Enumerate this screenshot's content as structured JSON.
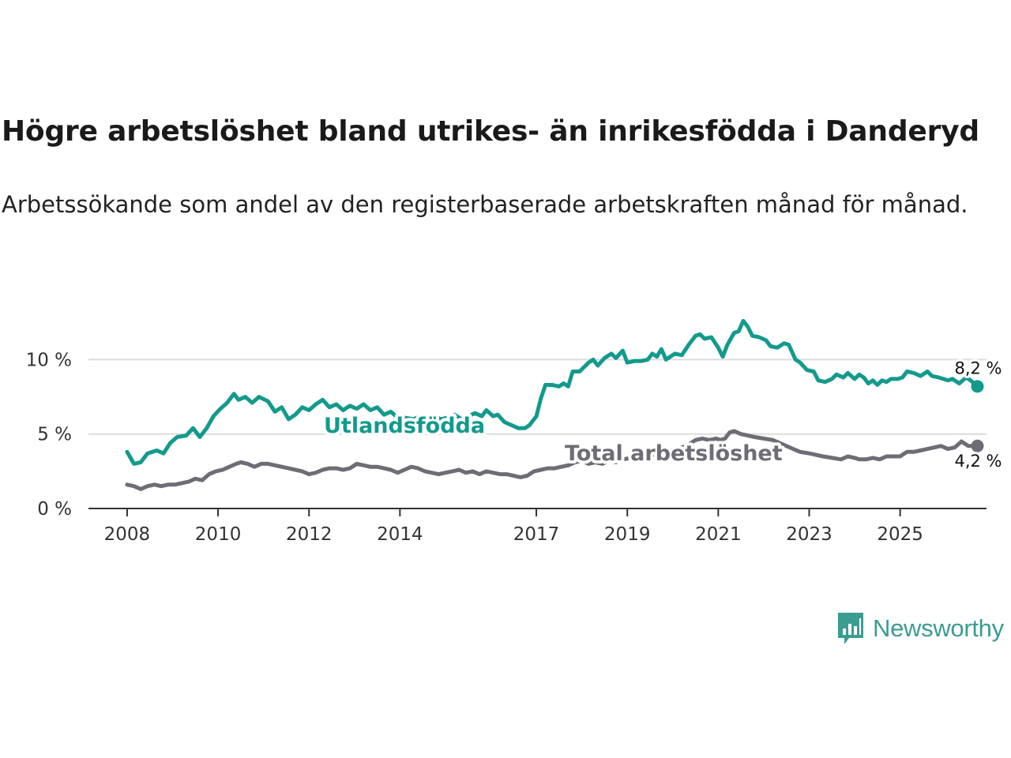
{
  "title": "Högre arbetslöshet bland utrikes- än inrikesfödda i Danderyd",
  "subtitle": "Arbetssökande som andel av den registerbaserade arbetskraften månad för månad.",
  "logo": {
    "text": "Newsworthy",
    "icon": "bar-chart-speech-bubble-icon",
    "color": "#3b9c91"
  },
  "chart_data": {
    "type": "line",
    "title": "Högre arbetslöshet bland utrikes- än inrikesfödda i Danderyd",
    "subtitle": "Arbetssökande som andel av den registerbaserade arbetskraften månad för månad.",
    "xlabel": "",
    "ylabel": "",
    "x_ticks": [
      2008,
      2010,
      2012,
      2014,
      2017,
      2019,
      2021,
      2023,
      2025
    ],
    "x_range": [
      2007.15,
      2026.9
    ],
    "y_ticks": [
      0,
      5,
      10
    ],
    "y_tick_labels": [
      "0 %",
      "5 %",
      "10 %"
    ],
    "ylim": [
      0,
      14
    ],
    "grid": "horizontal",
    "series": [
      {
        "name": "Utlandsfödda",
        "color": "#139a8c",
        "end_label": "8,2 %",
        "end_value": 8.2,
        "points": [
          [
            2008.0,
            3.8
          ],
          [
            2008.15,
            3.0
          ],
          [
            2008.3,
            3.1
          ],
          [
            2008.45,
            3.7
          ],
          [
            2008.65,
            3.9
          ],
          [
            2008.8,
            3.7
          ],
          [
            2008.95,
            4.4
          ],
          [
            2009.1,
            4.8
          ],
          [
            2009.3,
            4.9
          ],
          [
            2009.45,
            5.4
          ],
          [
            2009.6,
            4.8
          ],
          [
            2009.75,
            5.4
          ],
          [
            2009.9,
            6.2
          ],
          [
            2010.05,
            6.7
          ],
          [
            2010.2,
            7.1
          ],
          [
            2010.35,
            7.7
          ],
          [
            2010.45,
            7.3
          ],
          [
            2010.6,
            7.5
          ],
          [
            2010.75,
            7.1
          ],
          [
            2010.9,
            7.5
          ],
          [
            2011.1,
            7.2
          ],
          [
            2011.25,
            6.5
          ],
          [
            2011.4,
            6.8
          ],
          [
            2011.55,
            6.0
          ],
          [
            2011.7,
            6.3
          ],
          [
            2011.85,
            6.8
          ],
          [
            2012.0,
            6.6
          ],
          [
            2012.15,
            7.0
          ],
          [
            2012.3,
            7.3
          ],
          [
            2012.45,
            6.8
          ],
          [
            2012.6,
            7.0
          ],
          [
            2012.75,
            6.6
          ],
          [
            2012.9,
            6.9
          ],
          [
            2013.05,
            6.7
          ],
          [
            2013.2,
            7.0
          ],
          [
            2013.35,
            6.6
          ],
          [
            2013.5,
            6.8
          ],
          [
            2013.65,
            6.3
          ],
          [
            2013.8,
            6.5
          ],
          [
            2013.95,
            6.1
          ],
          [
            2014.1,
            6.1
          ],
          [
            2014.3,
            6.0
          ],
          [
            2014.45,
            6.2
          ],
          [
            2014.6,
            6.0
          ],
          [
            2014.75,
            6.2
          ],
          [
            2014.9,
            6.0
          ],
          [
            2015.05,
            6.1
          ],
          [
            2015.2,
            6.3
          ],
          [
            2015.35,
            6.0
          ],
          [
            2015.5,
            6.2
          ],
          [
            2015.65,
            6.4
          ],
          [
            2015.8,
            6.2
          ],
          [
            2015.9,
            6.6
          ],
          [
            2016.05,
            6.2
          ],
          [
            2016.15,
            6.3
          ],
          [
            2016.3,
            5.8
          ],
          [
            2016.45,
            5.6
          ],
          [
            2016.6,
            5.4
          ],
          [
            2016.75,
            5.4
          ],
          [
            2016.85,
            5.6
          ],
          [
            2017.0,
            6.2
          ],
          [
            2017.1,
            7.4
          ],
          [
            2017.2,
            8.3
          ],
          [
            2017.35,
            8.3
          ],
          [
            2017.5,
            8.2
          ],
          [
            2017.6,
            8.4
          ],
          [
            2017.7,
            8.2
          ],
          [
            2017.8,
            9.2
          ],
          [
            2017.95,
            9.2
          ],
          [
            2018.05,
            9.5
          ],
          [
            2018.15,
            9.8
          ],
          [
            2018.25,
            10.0
          ],
          [
            2018.35,
            9.6
          ],
          [
            2018.5,
            10.1
          ],
          [
            2018.65,
            10.4
          ],
          [
            2018.75,
            10.1
          ],
          [
            2018.9,
            10.6
          ],
          [
            2019.0,
            9.8
          ],
          [
            2019.15,
            9.9
          ],
          [
            2019.3,
            9.9
          ],
          [
            2019.45,
            10.0
          ],
          [
            2019.55,
            10.4
          ],
          [
            2019.65,
            10.2
          ],
          [
            2019.75,
            10.7
          ],
          [
            2019.85,
            10.0
          ],
          [
            2020.05,
            10.4
          ],
          [
            2020.2,
            10.3
          ],
          [
            2020.35,
            11.0
          ],
          [
            2020.5,
            11.6
          ],
          [
            2020.6,
            11.7
          ],
          [
            2020.7,
            11.4
          ],
          [
            2020.85,
            11.5
          ],
          [
            2021.0,
            10.8
          ],
          [
            2021.1,
            10.2
          ],
          [
            2021.2,
            11.0
          ],
          [
            2021.35,
            11.8
          ],
          [
            2021.45,
            11.9
          ],
          [
            2021.55,
            12.6
          ],
          [
            2021.65,
            12.2
          ],
          [
            2021.75,
            11.6
          ],
          [
            2021.9,
            11.5
          ],
          [
            2022.05,
            11.3
          ],
          [
            2022.15,
            10.9
          ],
          [
            2022.3,
            10.8
          ],
          [
            2022.45,
            11.1
          ],
          [
            2022.55,
            11.0
          ],
          [
            2022.7,
            10.0
          ],
          [
            2022.8,
            9.8
          ],
          [
            2022.95,
            9.3
          ],
          [
            2023.1,
            9.2
          ],
          [
            2023.2,
            8.6
          ],
          [
            2023.35,
            8.5
          ],
          [
            2023.5,
            8.7
          ],
          [
            2023.6,
            9.0
          ],
          [
            2023.75,
            8.8
          ],
          [
            2023.85,
            9.1
          ],
          [
            2024.0,
            8.7
          ],
          [
            2024.1,
            9.0
          ],
          [
            2024.2,
            8.8
          ],
          [
            2024.3,
            8.4
          ],
          [
            2024.4,
            8.6
          ],
          [
            2024.5,
            8.3
          ],
          [
            2024.6,
            8.6
          ],
          [
            2024.7,
            8.5
          ],
          [
            2024.8,
            8.7
          ],
          [
            2024.95,
            8.7
          ],
          [
            2025.05,
            8.8
          ],
          [
            2025.15,
            9.2
          ],
          [
            2025.3,
            9.1
          ],
          [
            2025.45,
            8.9
          ],
          [
            2025.6,
            9.2
          ],
          [
            2025.7,
            8.9
          ],
          [
            2025.85,
            8.8
          ],
          [
            2025.95,
            8.7
          ],
          [
            2026.05,
            8.6
          ],
          [
            2026.15,
            8.7
          ],
          [
            2026.3,
            8.4
          ],
          [
            2026.45,
            8.8
          ],
          [
            2026.55,
            8.6
          ],
          [
            2026.7,
            8.2
          ]
        ]
      },
      {
        "name": "Total arbetslöshet",
        "color": "#6e6d75",
        "end_label": "4,2 %",
        "end_value": 4.2,
        "points": [
          [
            2008.0,
            1.6
          ],
          [
            2008.15,
            1.5
          ],
          [
            2008.3,
            1.3
          ],
          [
            2008.45,
            1.5
          ],
          [
            2008.6,
            1.6
          ],
          [
            2008.75,
            1.5
          ],
          [
            2008.9,
            1.6
          ],
          [
            2009.05,
            1.6
          ],
          [
            2009.2,
            1.7
          ],
          [
            2009.35,
            1.8
          ],
          [
            2009.5,
            2.0
          ],
          [
            2009.65,
            1.9
          ],
          [
            2009.8,
            2.3
          ],
          [
            2009.95,
            2.5
          ],
          [
            2010.1,
            2.6
          ],
          [
            2010.25,
            2.8
          ],
          [
            2010.4,
            3.0
          ],
          [
            2010.5,
            3.1
          ],
          [
            2010.65,
            3.0
          ],
          [
            2010.8,
            2.8
          ],
          [
            2010.95,
            3.0
          ],
          [
            2011.1,
            3.0
          ],
          [
            2011.25,
            2.9
          ],
          [
            2011.4,
            2.8
          ],
          [
            2011.55,
            2.7
          ],
          [
            2011.7,
            2.6
          ],
          [
            2011.85,
            2.5
          ],
          [
            2012.0,
            2.3
          ],
          [
            2012.15,
            2.4
          ],
          [
            2012.3,
            2.6
          ],
          [
            2012.45,
            2.7
          ],
          [
            2012.6,
            2.7
          ],
          [
            2012.75,
            2.6
          ],
          [
            2012.9,
            2.7
          ],
          [
            2013.05,
            3.0
          ],
          [
            2013.2,
            2.9
          ],
          [
            2013.35,
            2.8
          ],
          [
            2013.5,
            2.8
          ],
          [
            2013.65,
            2.7
          ],
          [
            2013.8,
            2.6
          ],
          [
            2013.95,
            2.4
          ],
          [
            2014.1,
            2.6
          ],
          [
            2014.25,
            2.8
          ],
          [
            2014.4,
            2.7
          ],
          [
            2014.55,
            2.5
          ],
          [
            2014.7,
            2.4
          ],
          [
            2014.85,
            2.3
          ],
          [
            2015.0,
            2.4
          ],
          [
            2015.15,
            2.5
          ],
          [
            2015.3,
            2.6
          ],
          [
            2015.45,
            2.4
          ],
          [
            2015.6,
            2.5
          ],
          [
            2015.75,
            2.3
          ],
          [
            2015.9,
            2.5
          ],
          [
            2016.05,
            2.4
          ],
          [
            2016.2,
            2.3
          ],
          [
            2016.35,
            2.3
          ],
          [
            2016.5,
            2.2
          ],
          [
            2016.65,
            2.1
          ],
          [
            2016.8,
            2.2
          ],
          [
            2016.95,
            2.5
          ],
          [
            2017.1,
            2.6
          ],
          [
            2017.25,
            2.7
          ],
          [
            2017.4,
            2.7
          ],
          [
            2017.55,
            2.8
          ],
          [
            2017.7,
            2.9
          ],
          [
            2017.85,
            3.1
          ],
          [
            2018.0,
            3.2
          ],
          [
            2018.15,
            3.0
          ],
          [
            2018.3,
            3.1
          ],
          [
            2018.45,
            3.0
          ],
          [
            2018.6,
            3.2
          ],
          [
            2018.75,
            3.1
          ],
          [
            2018.9,
            3.3
          ],
          [
            2019.1,
            3.4
          ],
          [
            2019.3,
            3.5
          ],
          [
            2019.5,
            3.6
          ],
          [
            2019.7,
            3.6
          ],
          [
            2019.9,
            3.9
          ],
          [
            2020.1,
            4.0
          ],
          [
            2020.3,
            4.2
          ],
          [
            2020.5,
            4.6
          ],
          [
            2020.65,
            4.7
          ],
          [
            2020.8,
            4.6
          ],
          [
            2020.95,
            4.7
          ],
          [
            2021.05,
            4.6
          ],
          [
            2021.15,
            4.7
          ],
          [
            2021.25,
            5.1
          ],
          [
            2021.35,
            5.2
          ],
          [
            2021.5,
            5.0
          ],
          [
            2021.65,
            4.9
          ],
          [
            2021.8,
            4.8
          ],
          [
            2022.0,
            4.7
          ],
          [
            2022.2,
            4.6
          ],
          [
            2022.35,
            4.4
          ],
          [
            2022.5,
            4.2
          ],
          [
            2022.65,
            4.0
          ],
          [
            2022.8,
            3.8
          ],
          [
            2023.0,
            3.7
          ],
          [
            2023.15,
            3.6
          ],
          [
            2023.3,
            3.5
          ],
          [
            2023.5,
            3.4
          ],
          [
            2023.7,
            3.3
          ],
          [
            2023.85,
            3.5
          ],
          [
            2024.0,
            3.4
          ],
          [
            2024.1,
            3.3
          ],
          [
            2024.25,
            3.3
          ],
          [
            2024.4,
            3.4
          ],
          [
            2024.55,
            3.3
          ],
          [
            2024.7,
            3.5
          ],
          [
            2024.85,
            3.5
          ],
          [
            2025.0,
            3.5
          ],
          [
            2025.15,
            3.8
          ],
          [
            2025.3,
            3.8
          ],
          [
            2025.45,
            3.9
          ],
          [
            2025.6,
            4.0
          ],
          [
            2025.75,
            4.1
          ],
          [
            2025.9,
            4.2
          ],
          [
            2026.05,
            4.0
          ],
          [
            2026.2,
            4.1
          ],
          [
            2026.35,
            4.5
          ],
          [
            2026.5,
            4.2
          ],
          [
            2026.6,
            4.2
          ],
          [
            2026.7,
            4.2
          ]
        ]
      }
    ]
  }
}
